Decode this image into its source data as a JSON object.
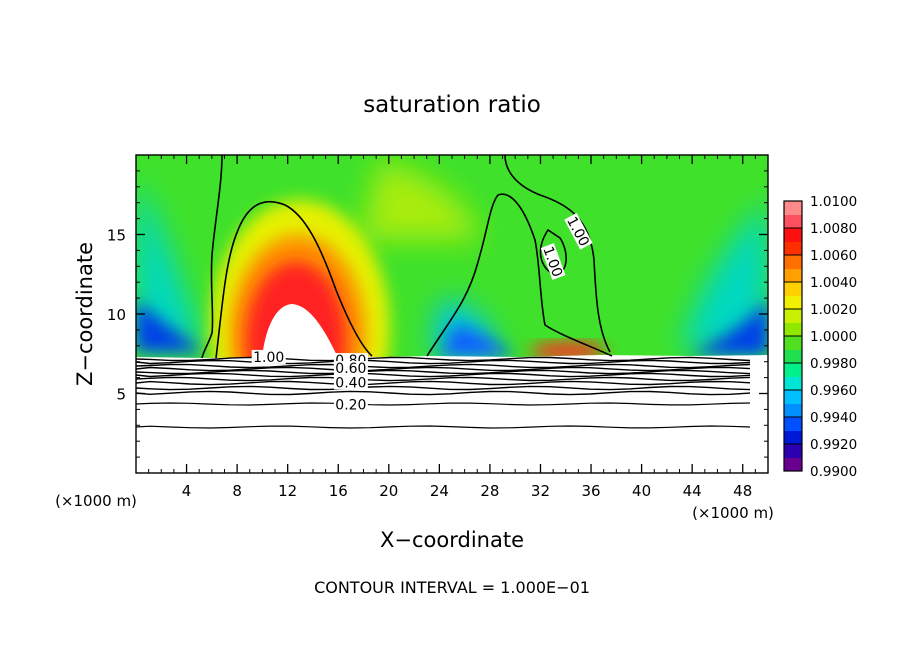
{
  "chart_data": {
    "type": "contour",
    "title": "saturation ratio",
    "xlabel": "X−coordinate",
    "ylabel": "Z−coordinate",
    "x_unit_label": "(×1000 m)",
    "y_unit_label": "(×1000 m)",
    "xlim": [
      0,
      50
    ],
    "ylim": [
      0,
      20
    ],
    "xticks": [
      4,
      8,
      12,
      16,
      20,
      24,
      28,
      32,
      36,
      40,
      44,
      48
    ],
    "xtick_labels": [
      "4",
      "8",
      "12",
      "16",
      "20",
      "24",
      "28",
      "32",
      "36",
      "40",
      "44",
      "48"
    ],
    "yticks": [
      5,
      10,
      15
    ],
    "ytick_labels": [
      "5",
      "10",
      "15"
    ],
    "footer": "CONTOUR INTERVAL = 1.000E−01",
    "colorbar": {
      "min": 0.99,
      "max": 1.01,
      "step": 0.001,
      "tick_labels": [
        "0.9900",
        "0.9920",
        "0.9940",
        "0.9960",
        "0.9980",
        "1.0000",
        "1.0020",
        "1.0040",
        "1.0060",
        "1.0080",
        "1.0100"
      ],
      "colors": [
        "#6a0090",
        "#2c00b0",
        "#0018d8",
        "#0050ff",
        "#0090ff",
        "#00c0ff",
        "#00e6d4",
        "#00f08a",
        "#20e050",
        "#50e020",
        "#90e800",
        "#c8f000",
        "#f0f000",
        "#ffd000",
        "#ffa000",
        "#ff7000",
        "#ff3000",
        "#ff1010",
        "#ff5060",
        "#ff8a8a"
      ]
    },
    "contour_labels": [
      {
        "text": "1.00",
        "x": 10.5,
        "z": 7.3
      },
      {
        "text": "0.80",
        "x": 17.0,
        "z": 7.1
      },
      {
        "text": "0.60",
        "x": 17.0,
        "z": 6.6
      },
      {
        "text": "0.40",
        "x": 17.0,
        "z": 5.7
      },
      {
        "text": "0.20",
        "x": 17.0,
        "z": 4.3
      },
      {
        "text": "1.00",
        "x": 35.0,
        "z": 15.2
      },
      {
        "text": "1.00",
        "x": 33.0,
        "z": 13.3
      }
    ]
  }
}
